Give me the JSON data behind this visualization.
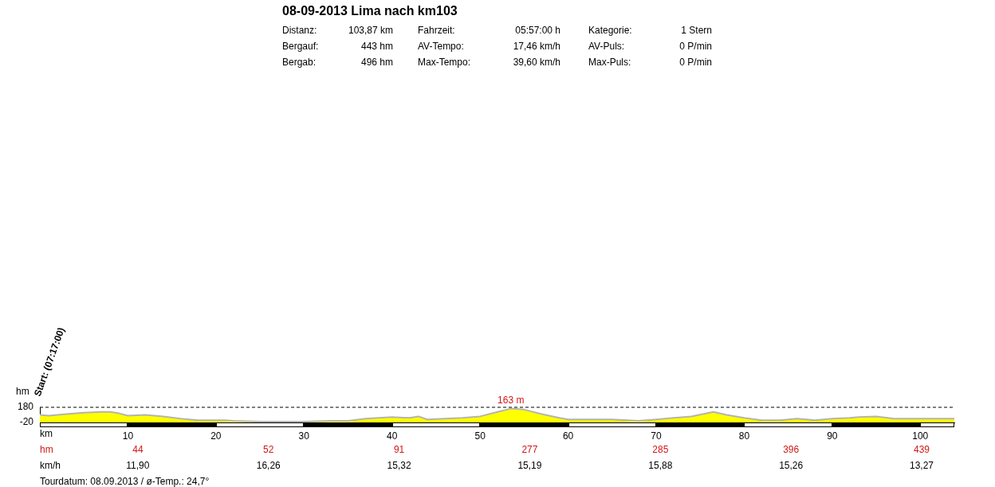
{
  "chart_data": {
    "type": "area",
    "title": "08-09-2013 Lima nach km103",
    "xlabel": "km",
    "ylabel": "hm",
    "annotations": [
      "Distanz:",
      "103,87 km",
      "Fahrzeit:",
      "05:57:00 h",
      "Kategorie:",
      "1 Stern",
      "Bergauf:",
      "443 hm",
      "AV-Tempo:",
      "17,46 km/h",
      "AV-Puls:",
      "0 P/min",
      "Bergab:",
      "496 hm",
      "Max-Tempo:",
      "39,60 km/h",
      "Max-Puls:",
      "0 P/min",
      {
        "text": "Start: (07:17:00)",
        "x": 0,
        "y": 180
      },
      {
        "text": "163 m",
        "x": 53.5,
        "y": 163
      },
      "hm",
      "44",
      "52",
      "91",
      "277",
      "285",
      "396",
      "439",
      "km/h",
      "11,90",
      "16,26",
      "15,32",
      "15,19",
      "15,88",
      "15,26",
      "13,27",
      "Tourdatum: 08.09.2013  /  ø-Temp.: 24,7°"
    ],
    "series": [
      {
        "color": "#ffff00",
        "x": [
          0,
          1,
          3,
          5,
          7,
          8,
          9,
          10,
          12,
          13,
          14,
          16,
          18,
          20,
          21,
          22,
          25,
          30,
          33,
          35,
          37,
          40,
          42,
          43,
          44,
          46,
          48,
          50,
          52,
          53.5,
          55,
          57,
          59,
          60,
          63,
          65,
          68,
          70,
          72,
          74,
          76.5,
          78,
          80,
          82,
          84,
          86,
          88,
          90,
          92,
          93,
          95,
          97,
          100,
          103.87
        ],
        "values": [
          80,
          70,
          90,
          110,
          120,
          120,
          100,
          70,
          80,
          70,
          60,
          30,
          10,
          10,
          10,
          0,
          -10,
          -10,
          0,
          0,
          30,
          50,
          40,
          60,
          20,
          30,
          40,
          60,
          120,
          163,
          150,
          90,
          40,
          20,
          20,
          20,
          0,
          20,
          40,
          60,
          120,
          80,
          40,
          10,
          10,
          30,
          10,
          30,
          40,
          50,
          60,
          30,
          30,
          30
        ]
      }
    ],
    "xlim": [
      0,
      103.87
    ],
    "xticks": [
      10,
      20,
      30,
      40,
      50,
      60,
      70,
      80,
      90,
      100
    ],
    "ylim": [
      -20,
      180
    ],
    "yticks": [
      -20,
      180
    ],
    "ref_lines": [
      {
        "axis": "y",
        "value": 180,
        "line_style": "dashed"
      }
    ],
    "grid": false,
    "legend": false,
    "marker": "none"
  }
}
